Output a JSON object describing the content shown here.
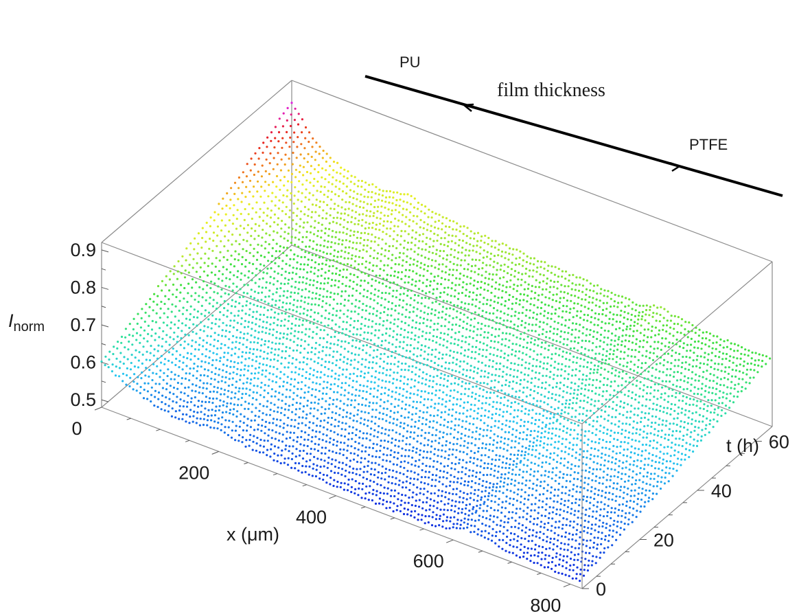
{
  "chart_data": {
    "type": "scatter",
    "plot_style": "3d-stacked-profiles",
    "x_axis": {
      "label": "x (μm)",
      "range": [
        0,
        820
      ],
      "ticks": [
        0,
        200,
        400,
        600,
        800
      ]
    },
    "t_axis": {
      "label": "t (h)",
      "range": [
        0,
        66
      ],
      "ticks": [
        0,
        20,
        40,
        60
      ]
    },
    "y_axis": {
      "label_main": "I",
      "label_sub": "norm",
      "range": [
        0.48,
        0.92
      ],
      "ticks": [
        0.5,
        0.6,
        0.7,
        0.8,
        0.9
      ]
    },
    "colormap": [
      "#1030e0",
      "#1878e8",
      "#28c8f0",
      "#30e0a0",
      "#40e040",
      "#c0e830",
      "#f0f020",
      "#f08020",
      "#e82020",
      "#e020e0"
    ],
    "series_count": 48,
    "profile_model": {
      "description": "Approximate intensity profile I(x) per time step, decaying from left edge with bump near x≈200 and step near x≈600",
      "x_samples": [
        0,
        40,
        80,
        120,
        160,
        200,
        240,
        300,
        400,
        500,
        560,
        600,
        620,
        700,
        800,
        820
      ],
      "profile_t0": [
        0.6,
        0.57,
        0.545,
        0.53,
        0.53,
        0.54,
        0.525,
        0.515,
        0.505,
        0.5,
        0.5,
        0.51,
        0.525,
        0.505,
        0.5,
        0.5
      ],
      "profile_t33": [
        0.72,
        0.66,
        0.63,
        0.62,
        0.625,
        0.63,
        0.615,
        0.605,
        0.595,
        0.59,
        0.585,
        0.58,
        0.595,
        0.575,
        0.57,
        0.57
      ],
      "profile_t66": [
        0.86,
        0.78,
        0.74,
        0.72,
        0.72,
        0.73,
        0.71,
        0.7,
        0.69,
        0.68,
        0.675,
        0.67,
        0.685,
        0.665,
        0.66,
        0.66
      ]
    }
  },
  "annotations": {
    "pu": "PU",
    "film": "film thickness",
    "ptfe": "PTFE"
  }
}
